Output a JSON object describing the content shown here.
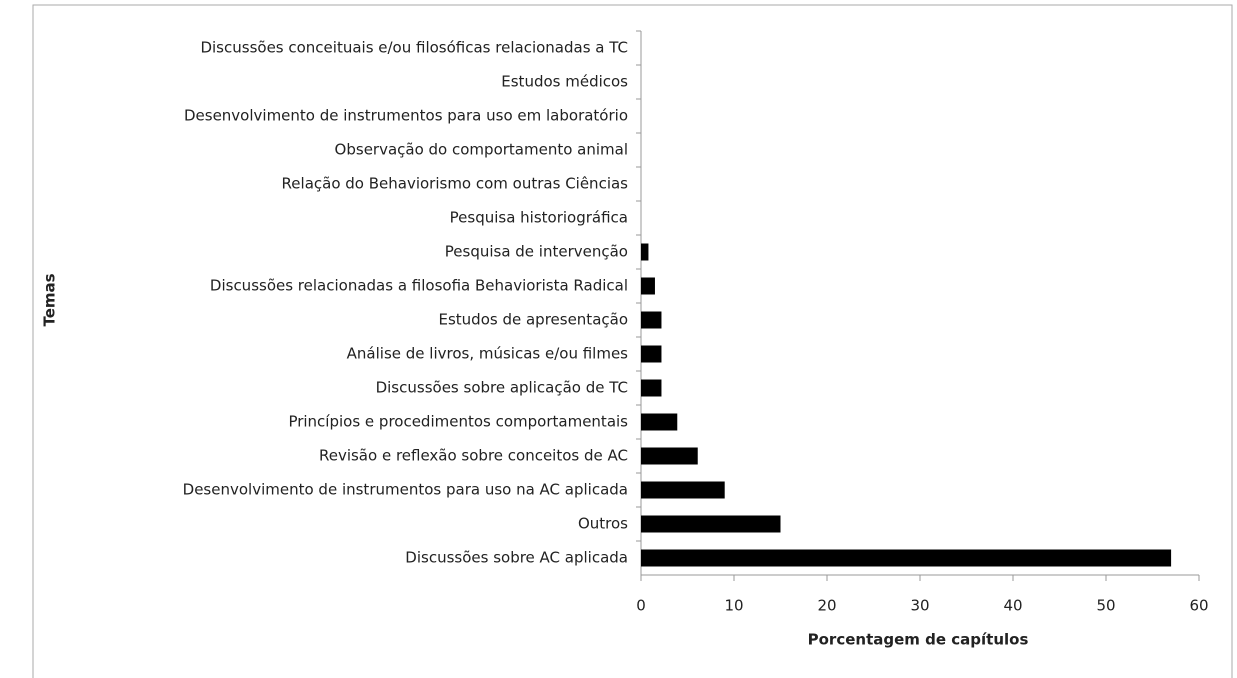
{
  "chart_data": {
    "type": "barh",
    "categories": [
      "Discussões conceituais e/ou filosóficas relacionadas a TC",
      "Estudos médicos",
      "Desenvolvimento de instrumentos para uso em laboratório",
      "Observação do comportamento animal",
      "Relação do Behaviorismo com outras  Ciências",
      "Pesquisa historiográfica",
      "Pesquisa de intervenção",
      "Discussões relacionadas a filosofia Behaviorista Radical",
      "Estudos de apresentação",
      "Análise de livros, músicas e/ou filmes",
      "Discussões sobre aplicação de TC",
      "Princípios e procedimentos comportamentais",
      "Revisão e reflexão sobre conceitos de AC",
      "Desenvolvimento de instrumentos para uso na AC aplicada",
      "Outros",
      "Discussões sobre AC aplicada"
    ],
    "values": [
      0,
      0,
      0,
      0,
      0,
      0,
      0.8,
      1.5,
      2.2,
      2.2,
      2.2,
      3.9,
      6.1,
      9.0,
      15.0,
      57.0
    ],
    "color": "#000000",
    "xlabel": "Porcentagem de capítulos",
    "ylabel": "Temas",
    "xlim": [
      0,
      60
    ],
    "xticks": [
      0,
      10,
      20,
      30,
      40,
      50,
      60
    ],
    "grid": false
  }
}
